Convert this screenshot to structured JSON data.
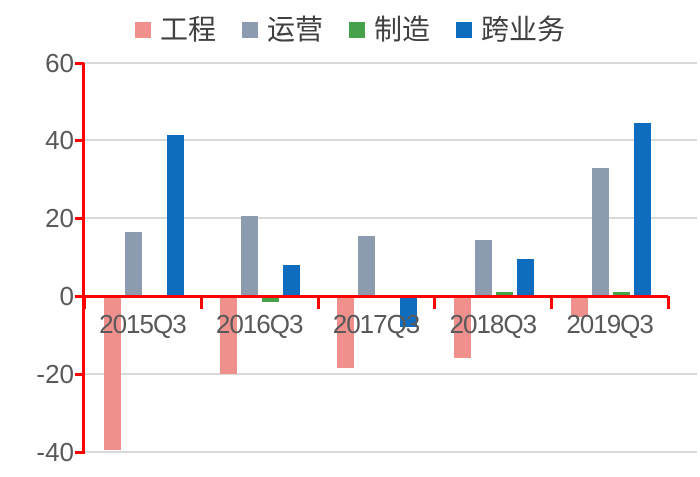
{
  "chart_data": {
    "type": "bar",
    "title": "",
    "categories": [
      "2015Q3",
      "2016Q3",
      "2017Q3",
      "2018Q3",
      "2019Q3"
    ],
    "series": [
      {
        "name": "工程",
        "color": "#F0908D",
        "values": [
          -39.5,
          -20,
          -18.5,
          -16,
          -5.5
        ]
      },
      {
        "name": "运营",
        "color": "#8D9BB0",
        "values": [
          16.5,
          20.5,
          15.5,
          14.5,
          33
        ]
      },
      {
        "name": "制造",
        "color": "#46A14B",
        "values": [
          -0.5,
          -1.5,
          -0.5,
          1,
          1
        ]
      },
      {
        "name": "跨业务",
        "color": "#0E6DBE",
        "values": [
          41.5,
          8,
          -8,
          9.5,
          44.5
        ]
      }
    ],
    "xlabel": "",
    "ylabel": "",
    "y_ticks": [
      60,
      40,
      20,
      0,
      -20,
      -40
    ],
    "ylim": [
      -40,
      60
    ],
    "grid": true,
    "legend_position": "top",
    "axis_color": "#FF0000",
    "gridline_color": "#D9D9D9",
    "tick_label_color": "#595959",
    "legend_text_color": "#404040"
  }
}
